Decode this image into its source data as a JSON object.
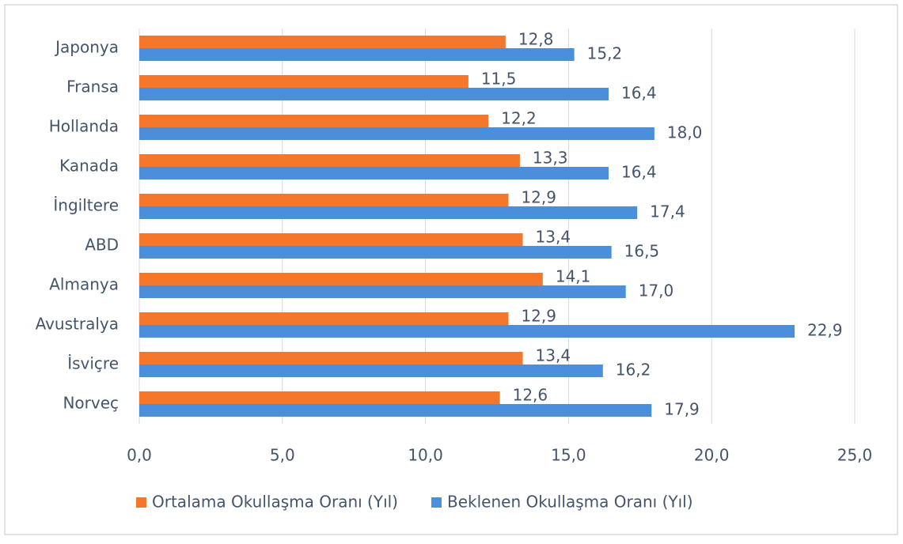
{
  "chart_data": {
    "type": "bar",
    "orientation": "horizontal",
    "categories": [
      "Japonya",
      "Fransa",
      "Hollanda",
      "Kanada",
      "İngiltere",
      "ABD",
      "Almanya",
      "Avustralya",
      "İsviçre",
      "Norveç"
    ],
    "series": [
      {
        "name": "Ortalama Okullaşma Oranı (Yıl)",
        "color": "#f4772b",
        "values": [
          12.8,
          11.5,
          12.2,
          13.3,
          12.9,
          13.4,
          14.1,
          12.9,
          13.4,
          12.6
        ],
        "value_labels": [
          "12,8",
          "11,5",
          "12,2",
          "13,3",
          "12,9",
          "13,4",
          "14,1",
          "12,9",
          "13,4",
          "12,6"
        ]
      },
      {
        "name": "Beklenen Okullaşma Oranı (Yıl)",
        "color": "#4b8fdc",
        "values": [
          15.2,
          16.4,
          18.0,
          16.4,
          17.4,
          16.5,
          17.0,
          22.9,
          16.2,
          17.9
        ],
        "value_labels": [
          "15,2",
          "16,4",
          "18,0",
          "16,4",
          "17,4",
          "16,5",
          "17,0",
          "22,9",
          "16,2",
          "17,9"
        ]
      }
    ],
    "xlim": [
      0,
      25
    ],
    "xticks": [
      {
        "value": 0,
        "label": "0,0"
      },
      {
        "value": 5,
        "label": "5,0"
      },
      {
        "value": 10,
        "label": "10,0"
      },
      {
        "value": 15,
        "label": "15,0"
      },
      {
        "value": 20,
        "label": "20,0"
      },
      {
        "value": 25,
        "label": "25,0"
      }
    ],
    "grid": true,
    "legend": "bottom"
  }
}
